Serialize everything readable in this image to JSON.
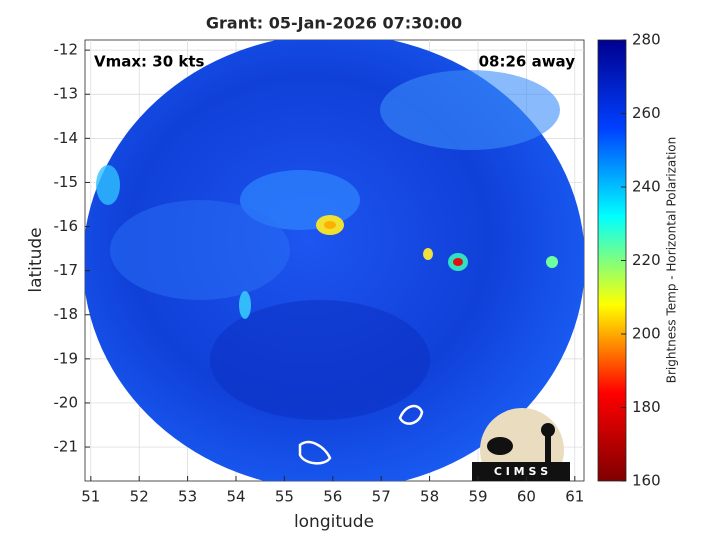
{
  "chart_data": {
    "type": "map",
    "title": "Grant: 05-Jan-2026 07:30:00",
    "annotations": [
      "Vmax: 30 kts",
      "08:26 away"
    ],
    "xlabel": "longitude",
    "ylabel": "latitude",
    "xlim": [
      50.88,
      61.19
    ],
    "xticks": [
      51,
      52,
      53,
      54,
      55,
      56,
      57,
      58,
      59,
      60,
      61
    ],
    "ylim": [
      -21.77,
      -11.77
    ],
    "yticks": [
      -12,
      -13,
      -14,
      -15,
      -16,
      -17,
      -18,
      -19,
      -20,
      -21
    ],
    "grid": true,
    "colorbar": {
      "label": "Brightness Temp - Horizontal Polarization",
      "lim": [
        160,
        280
      ],
      "ticks": [
        160,
        180,
        200,
        220,
        240,
        260,
        280
      ],
      "colormap": [
        "#7f0000",
        "#ff0000",
        "#ffff00",
        "#00ffff",
        "#0040ff",
        "#00008f"
      ]
    },
    "logo": "C I M S S"
  }
}
